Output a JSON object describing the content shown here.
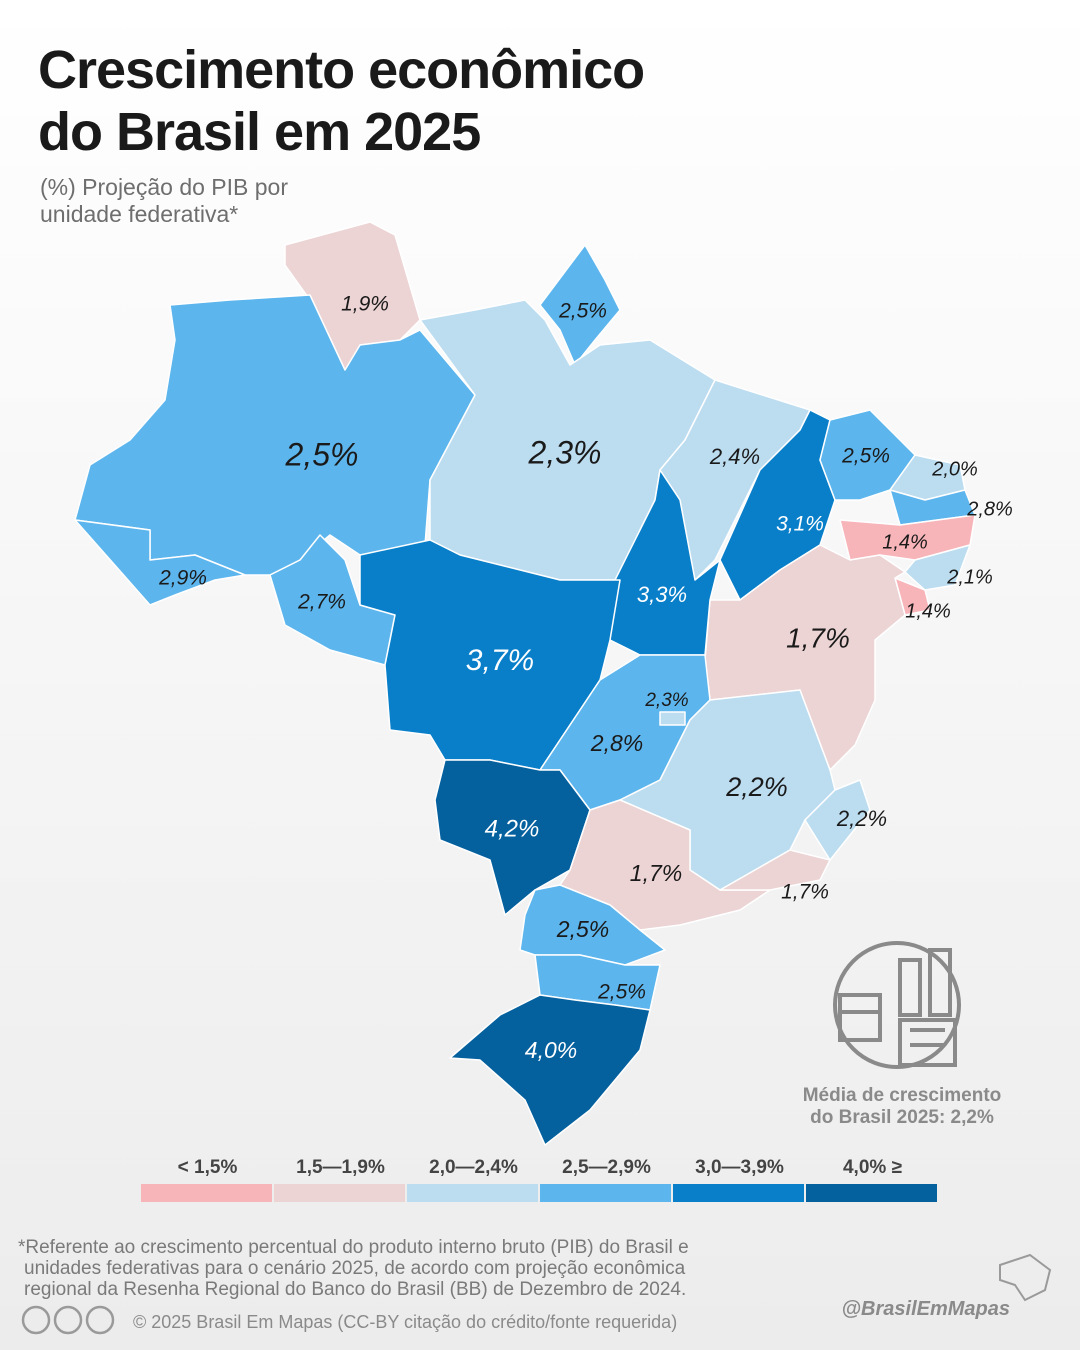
{
  "title": [
    "Crescimento econômico",
    "do Brasil em 2025"
  ],
  "subtitle": [
    "(%) Projeção do PIB por",
    "unidade federativa*"
  ],
  "states": [
    {
      "label": "1,9%",
      "value": 1.9
    },
    {
      "label": "2,5%",
      "value": 2.5
    },
    {
      "label": "2,5%",
      "value": 2.5
    },
    {
      "label": "2,3%",
      "value": 2.3
    },
    {
      "label": "2,4%",
      "value": 2.4
    },
    {
      "label": "3,1%",
      "value": 3.1
    },
    {
      "label": "2,5%",
      "value": 2.5
    },
    {
      "label": "2,0%",
      "value": 2.0
    },
    {
      "label": "2,8%",
      "value": 2.8
    },
    {
      "label": "1,4%",
      "value": 1.4
    },
    {
      "label": "2,1%",
      "value": 2.1
    },
    {
      "label": "1,4%",
      "value": 1.4
    },
    {
      "label": "1,7%",
      "value": 1.7
    },
    {
      "label": "3,3%",
      "value": 3.3
    },
    {
      "label": "2,9%",
      "value": 2.9
    },
    {
      "label": "2,7%",
      "value": 2.7
    },
    {
      "label": "3,7%",
      "value": 3.7
    },
    {
      "label": "2,8%",
      "value": 2.8
    },
    {
      "label": "2,3%",
      "value": 2.3
    },
    {
      "label": "2,2%",
      "value": 2.2
    },
    {
      "label": "2,2%",
      "value": 2.2
    },
    {
      "label": "4,2%",
      "value": 4.2
    },
    {
      "label": "1,7%",
      "value": 1.7
    },
    {
      "label": "1,7%",
      "value": 1.7
    },
    {
      "label": "2,5%",
      "value": 2.5
    },
    {
      "label": "2,5%",
      "value": 2.5
    },
    {
      "label": "4,0%",
      "value": 4.0
    }
  ],
  "average": [
    "Média de crescimento",
    "do Brasil 2025: 2,2%"
  ],
  "legend": [
    {
      "label": "< 1,5%",
      "color": "#f7b5b9"
    },
    {
      "label": "1,5—1,9%",
      "min": 1.5,
      "color": "#ecd3d4"
    },
    {
      "label": "2,0—2,4%",
      "min": 2.0,
      "color": "#bcdcf0"
    },
    {
      "label": "2,5—2,9%",
      "min": 2.5,
      "color": "#5db5ed"
    },
    {
      "label": "3,0—3,9%",
      "min": 3.0,
      "color": "#0a7fc9"
    },
    {
      "label": "4,0% ≥",
      "min": 4.0,
      "color": "#05609e"
    }
  ],
  "note": [
    "*Referente ao crescimento percentual do produto interno bruto (PIB) do Brasil e",
    "unidades federativas para o cenário 2025, de acordo com projeção econômica",
    "regional da Resenha Regional do Banco do Brasil (BB) de Dezembro de 2024."
  ],
  "copyright": "© 2025  Brasil Em Mapas (CC-BY citação do crédito/fonte requerida)",
  "handle": "@BrasilEmMapas"
}
